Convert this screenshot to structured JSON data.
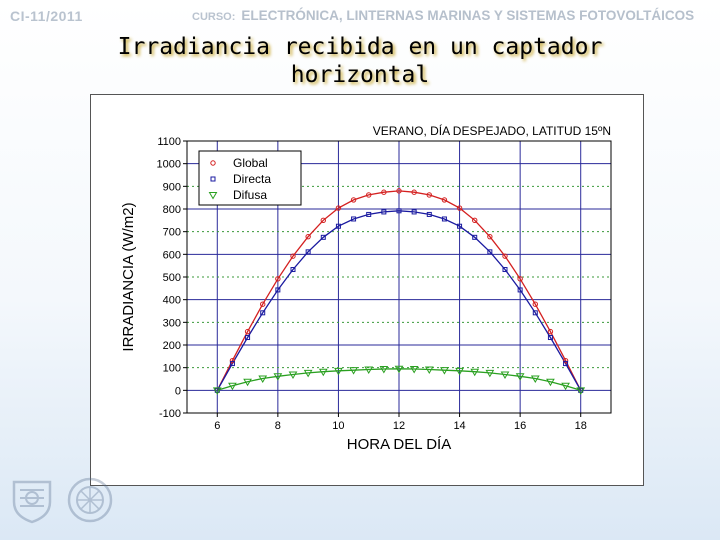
{
  "header": {
    "course_code": "CI-11/2011",
    "course_label": "CURSO:",
    "course_name": "ELECTRÓNICA, LINTERNAS MARINAS Y SISTEMAS FOTOVOLTÁICOS"
  },
  "slide": {
    "title": "Irradiancia recibida en un captador horizontal"
  },
  "chart_data": {
    "type": "scatter",
    "title": "VERANO, DÍA DESPEJADO, LATITUD 15ºN",
    "xlabel": "HORA DEL DÍA",
    "ylabel": "IRRADIANCIA (W/m2)",
    "xlim": [
      5,
      19
    ],
    "ylim": [
      -100,
      1100
    ],
    "xticks": [
      6,
      8,
      10,
      12,
      14,
      16,
      18
    ],
    "yticks": [
      -100,
      0,
      100,
      200,
      300,
      400,
      500,
      600,
      700,
      800,
      900,
      1000,
      1100
    ],
    "grid": true,
    "legend_position": "top-left",
    "x": [
      6,
      6.5,
      7,
      7.5,
      8,
      8.5,
      9,
      9.5,
      10,
      10.5,
      11,
      11.5,
      12,
      12.5,
      13,
      13.5,
      14,
      14.5,
      15,
      15.5,
      16,
      16.5,
      17,
      17.5,
      18
    ],
    "series": [
      {
        "name": "Global",
        "color": "#d42020",
        "marker": "circle",
        "values": [
          0,
          131,
          259,
          380,
          492,
          592,
          678,
          750,
          804,
          840,
          862,
          874,
          880,
          874,
          862,
          840,
          804,
          750,
          678,
          592,
          492,
          380,
          259,
          131,
          0
        ]
      },
      {
        "name": "Directa",
        "color": "#1a1aa0",
        "marker": "square",
        "values": [
          0,
          118,
          233,
          342,
          443,
          533,
          611,
          675,
          724,
          756,
          776,
          787,
          792,
          787,
          776,
          756,
          724,
          675,
          611,
          533,
          443,
          342,
          233,
          118,
          0
        ]
      },
      {
        "name": "Difusa",
        "color": "#2aa020",
        "marker": "triangle",
        "values": [
          0,
          20,
          38,
          52,
          62,
          70,
          77,
          82,
          86,
          89,
          92,
          94,
          95,
          94,
          92,
          89,
          86,
          82,
          77,
          70,
          62,
          52,
          38,
          20,
          0
        ]
      }
    ]
  }
}
